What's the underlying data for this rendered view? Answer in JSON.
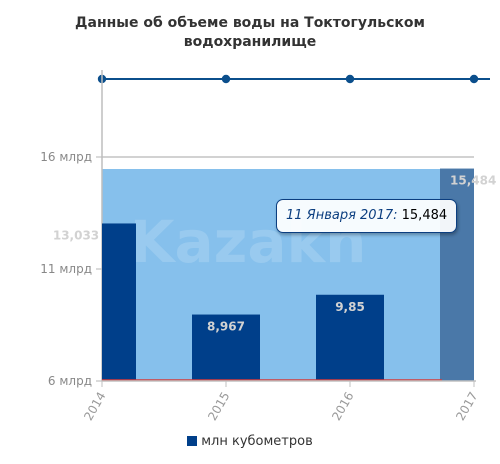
{
  "title_line1": "Данные об объеме воды на Токтогульском",
  "title_line2": "водохранилище",
  "watermark": "Kazakh",
  "chart_data": {
    "type": "bar",
    "title": "Данные об объеме воды на Токтогульском водохранилище",
    "x_ticks": [
      "2014",
      "2015",
      "2016",
      "2017"
    ],
    "y_ticks": [
      {
        "value": 6,
        "label": "6 млрд"
      },
      {
        "value": 11,
        "label": "11 млрд"
      },
      {
        "value": 16,
        "label": "16 млрд"
      }
    ],
    "ylim": [
      6,
      16
    ],
    "series": [
      {
        "name": "млн кубометров",
        "color": "#003f8a",
        "x": [
          2014,
          2015,
          2016,
          2017
        ],
        "values": [
          13.033,
          8.967,
          9.85,
          15.484
        ],
        "labels": [
          "13,033",
          "8,967",
          "9,85",
          "15,484"
        ]
      }
    ],
    "navigator_points": [
      2014,
      2015,
      2016,
      2017
    ],
    "highlighted_point": 3,
    "tooltip": {
      "date": "11 Января 2017",
      "value": "15,484"
    },
    "legend_position": "bottom",
    "colors": {
      "bar": "#003f8a",
      "bar_highlight": "#4a78a8",
      "plot_band": "#86c0ec",
      "navigator": "#0b4f8c",
      "red_line": "#d63a3a"
    }
  }
}
